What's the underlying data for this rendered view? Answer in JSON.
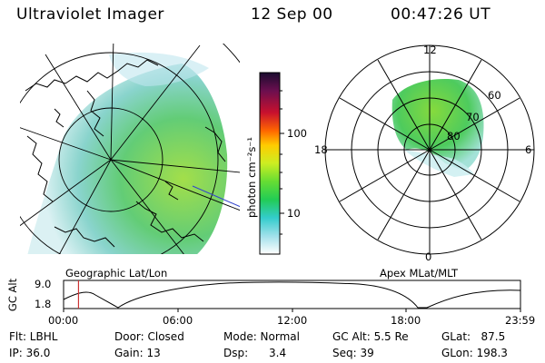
{
  "header": {
    "title": "Ultraviolet Imager",
    "date": "12 Sep 00",
    "time": "00:47:26 UT"
  },
  "left_panel": {
    "caption": "Geographic Lat/Lon"
  },
  "right_panel": {
    "caption": "Apex MLat/MLT",
    "mlt_labels": {
      "top": "12",
      "left": "18",
      "right": "6",
      "bottom": "0"
    },
    "mlat_labels": [
      "60",
      "70",
      "80"
    ]
  },
  "colorbar": {
    "unit_label": "photon cm⁻²s⁻¹",
    "ticks": [
      "100",
      "10"
    ],
    "scale": "log",
    "colors": [
      "#1a0b2e",
      "#6b0f4f",
      "#c8102e",
      "#ff6600",
      "#ffcc00",
      "#ccee22",
      "#66dd33",
      "#22cc55",
      "#33cccc",
      "#a0e0ea",
      "#ffffff"
    ]
  },
  "timeline": {
    "ylabel": "GC Alt",
    "yticks": [
      "9.0",
      "1.8"
    ],
    "xticks": [
      "00:00",
      "06:00",
      "12:00",
      "18:00",
      "23:59"
    ],
    "marker_time": "00:47",
    "marker_color": "#cc3333"
  },
  "info": {
    "filter": "Flt: LBHL",
    "ip": "IP: 36.0",
    "door": "Door: Closed",
    "gain": "Gain: 13",
    "mode": "Mode: Normal",
    "dsp": "Dsp:      3.4",
    "gc_alt": "GC Alt: 5.5 Re",
    "seq": "Seq: 39",
    "glat": "GLat:   87.5",
    "glon": "GLon: 198.3"
  }
}
